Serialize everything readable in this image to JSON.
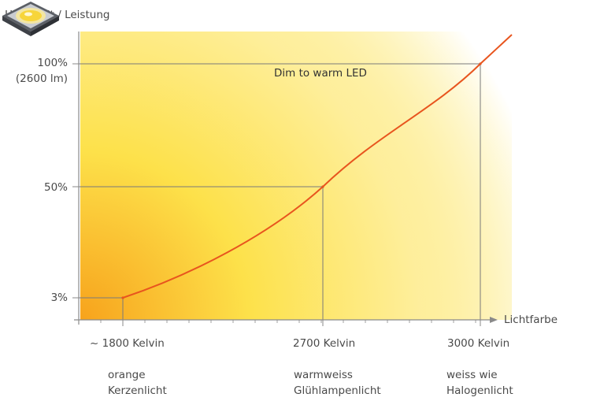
{
  "chart_data": {
    "type": "line",
    "ylabel": "Helligkeit / Leistung",
    "xlabel": "Lichtfarbe",
    "annotation": "Dim to warm LED",
    "y_ticks": [
      {
        "value": 3,
        "label": "3%"
      },
      {
        "value": 50,
        "label": "50%"
      },
      {
        "value": 100,
        "label": "100%",
        "sublabel": "(2600 lm)"
      }
    ],
    "x_ticks": [
      {
        "value": 1800,
        "label": "~ 1800 Kelvin",
        "desc": [
          "orange",
          "Kerzenlicht"
        ]
      },
      {
        "value": 2700,
        "label": "2700 Kelvin",
        "desc": [
          "warmweiss",
          "Glühlampenlicht"
        ]
      },
      {
        "value": 3000,
        "label": "3000 Kelvin",
        "desc": [
          "weiss wie",
          "Halogenlicht"
        ]
      }
    ],
    "series": [
      {
        "color": "#e8551e",
        "points": [
          [
            1800,
            3
          ],
          [
            2700,
            50
          ],
          [
            3000,
            100
          ]
        ]
      }
    ],
    "colors": {
      "curve": "#e8551e",
      "axis": "#8a8a8a",
      "guide": "#7a7a7a",
      "gradient_warm": "#f7a21b",
      "gradient_mid": "#fde14a",
      "gradient_light": "#ffffff"
    }
  }
}
